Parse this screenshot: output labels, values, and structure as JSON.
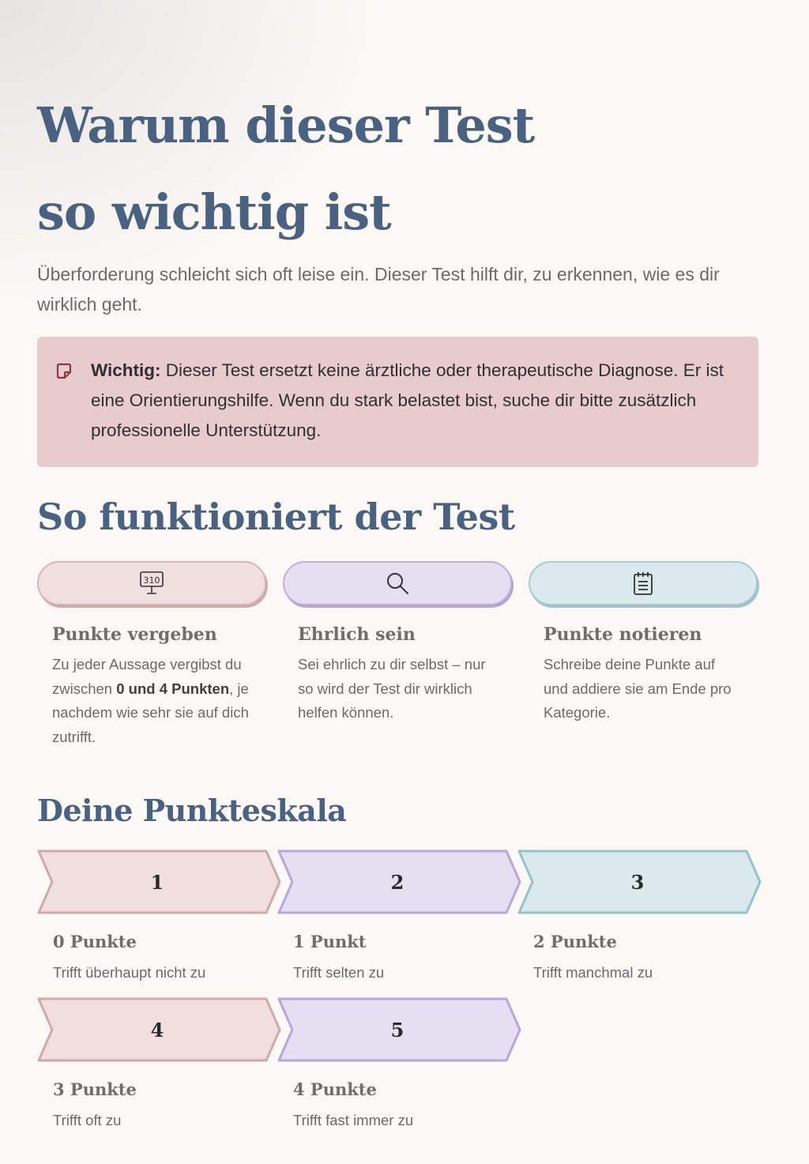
{
  "header": {
    "title_line1": "Warum dieser Test",
    "title_line2": "so wichtig ist",
    "intro": "Überforderung schleicht sich oft leise ein. Dieser Test hilft dir, zu erkennen, wie es dir wirklich geht."
  },
  "notice": {
    "icon": "sticky-note-icon",
    "label": "Wichtig:",
    "text": " Dieser Test ersetzt keine ärztliche oder therapeutische Diagnose. Er ist eine Orientierungshilfe. Wenn du stark belastet bist, suche dir bitte zusätzlich professionelle Unterstützung."
  },
  "how": {
    "heading": "So funktioniert der Test",
    "steps": [
      {
        "icon": "scoreboard-icon",
        "icon_text": "310",
        "title": "Punkte vergeben",
        "text_before": "Zu jeder Aussage vergibst du zwischen ",
        "bold1": "0 und 4",
        "text_mid": " ",
        "bold2": "Punkten",
        "text_after": ", je nachdem wie sehr sie auf dich zutrifft."
      },
      {
        "icon": "search-icon",
        "title": "Ehrlich sein",
        "text": "Sei ehrlich zu dir selbst – nur so wird der Test dir wirklich helfen können."
      },
      {
        "icon": "notepad-icon",
        "title": "Punkte notieren",
        "text": "Schreibe deine Punkte auf und addiere sie am Ende pro Kategorie."
      }
    ]
  },
  "scale": {
    "heading": "Deine Punkteskala",
    "items": [
      {
        "number": "1",
        "label": "0 Punkte",
        "desc": "Trifft überhaupt nicht zu"
      },
      {
        "number": "2",
        "label": "1 Punkt",
        "desc": "Trifft selten zu"
      },
      {
        "number": "3",
        "label": "2 Punkte",
        "desc": "Trifft manchmal zu"
      },
      {
        "number": "4",
        "label": "3 Punkte",
        "desc": "Trifft oft zu"
      },
      {
        "number": "5",
        "label": "4 Punkte",
        "desc": "Trifft fast immer zu"
      }
    ]
  },
  "colors": {
    "heading": "#4a6282",
    "pink": "#f1dede",
    "purple": "#e6def1",
    "blue": "#d9e9ec",
    "notice_bg": "#e8cccd"
  }
}
